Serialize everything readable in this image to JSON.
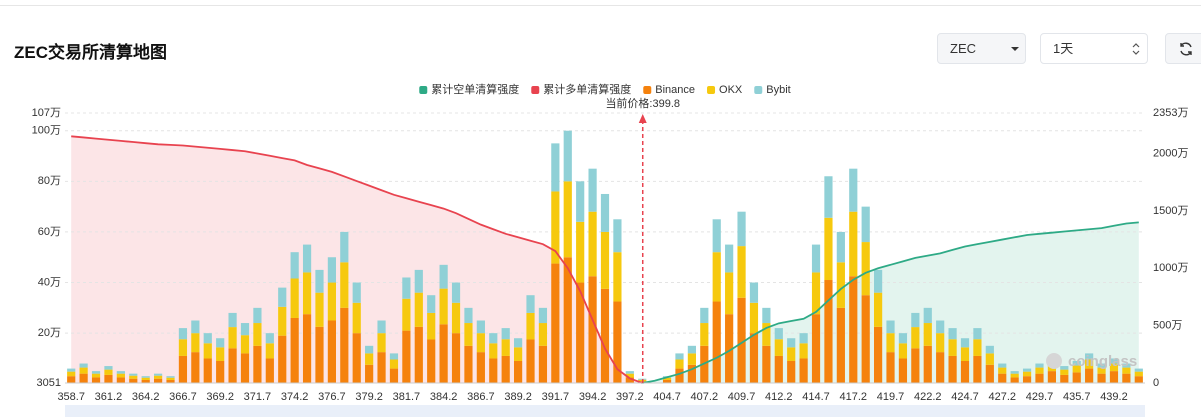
{
  "header": {
    "title": "ZEC交易所清算地图"
  },
  "controls": {
    "coin": "ZEC",
    "period": "1天"
  },
  "watermark": "coinglass",
  "chart_data": {
    "type": "bar",
    "categories": [
      "358.7",
      null,
      null,
      "361.2",
      null,
      null,
      "364.2",
      null,
      null,
      "366.7",
      null,
      null,
      "369.2",
      null,
      null,
      "371.7",
      null,
      null,
      "374.2",
      null,
      null,
      "376.7",
      null,
      null,
      "379.2",
      null,
      null,
      "381.7",
      null,
      null,
      "384.2",
      null,
      null,
      "386.7",
      null,
      null,
      "389.2",
      null,
      null,
      "391.7",
      null,
      null,
      "394.2",
      null,
      null,
      "397.2",
      null,
      null,
      "404.7",
      null,
      null,
      "407.2",
      null,
      null,
      "409.7",
      null,
      null,
      "412.2",
      null,
      null,
      "414.7",
      null,
      null,
      "417.2",
      null,
      null,
      "419.7",
      null,
      null,
      "422.2",
      null,
      null,
      "424.7",
      null,
      null,
      "427.2",
      null,
      null,
      "429.7",
      null,
      null,
      "435.7",
      null,
      null,
      "439.2",
      null,
      null
    ],
    "series": [
      {
        "name": "累计空单清算强度",
        "color": "#2eaa86",
        "type": "line",
        "axis": "y2",
        "fill": "#e3f4ee",
        "values": [
          null,
          null,
          null,
          null,
          null,
          null,
          null,
          null,
          null,
          null,
          null,
          null,
          null,
          null,
          null,
          null,
          null,
          null,
          null,
          null,
          null,
          null,
          null,
          null,
          null,
          null,
          null,
          null,
          null,
          null,
          null,
          null,
          null,
          null,
          null,
          null,
          null,
          null,
          null,
          null,
          null,
          null,
          null,
          null,
          null,
          null,
          0,
          200000,
          500000,
          800000,
          1200000,
          1700000,
          2200000,
          2800000,
          3500000,
          4200000,
          4800000,
          5200000,
          5400000,
          5600000,
          6200000,
          7200000,
          8200000,
          9000000,
          9600000,
          10000000,
          10300000,
          10600000,
          10900000,
          11100000,
          11300000,
          11600000,
          11900000,
          12100000,
          12300000,
          12500000,
          12700000,
          12900000,
          13000000,
          13100000,
          13200000,
          13300000,
          13400000,
          13500000,
          13700000,
          13900000,
          14000000
        ]
      },
      {
        "name": "累计多单清算强度",
        "color": "#e8434f",
        "type": "line",
        "axis": "y2",
        "fill": "#fce5e7",
        "values": [
          21500000,
          21400000,
          21300000,
          21200000,
          21100000,
          21000000,
          20900000,
          20800000,
          20750000,
          20700000,
          20600000,
          20500000,
          20400000,
          20300000,
          20200000,
          20000000,
          19800000,
          19600000,
          19400000,
          19000000,
          18700000,
          18400000,
          18000000,
          17600000,
          17200000,
          16800000,
          16400000,
          16100000,
          15800000,
          15500000,
          15200000,
          14800000,
          14300000,
          13800000,
          13400000,
          13000000,
          12700000,
          12400000,
          12100000,
          11500000,
          10000000,
          8000000,
          5500000,
          3000000,
          1200000,
          400000,
          0,
          null,
          null,
          null,
          null,
          null,
          null,
          null,
          null,
          null,
          null,
          null,
          null,
          null,
          null,
          null,
          null,
          null,
          null,
          null,
          null,
          null,
          null,
          null,
          null,
          null,
          null,
          null,
          null,
          null,
          null,
          null,
          null,
          null,
          null,
          null,
          null,
          null,
          null,
          null,
          null
        ]
      },
      {
        "name": "Binance",
        "color": "#f5820d",
        "values": [
          30000,
          40000,
          25000,
          35000,
          25000,
          20000,
          15000,
          20000,
          15000,
          110000,
          125000,
          100000,
          90000,
          140000,
          120000,
          150000,
          100000,
          190000,
          260000,
          275000,
          225000,
          250000,
          300000,
          200000,
          75000,
          125000,
          60000,
          210000,
          225000,
          175000,
          235000,
          200000,
          150000,
          125000,
          100000,
          110000,
          90000,
          175000,
          150000,
          475000,
          500000,
          400000,
          425000,
          375000,
          325000,
          25000,
          10000,
          0,
          15000,
          60000,
          75000,
          150000,
          325000,
          275000,
          340000,
          200000,
          150000,
          110000,
          90000,
          100000,
          275000,
          410000,
          300000,
          425000,
          350000,
          225000,
          125000,
          100000,
          140000,
          150000,
          125000,
          110000,
          90000,
          110000,
          75000,
          40000,
          25000,
          30000,
          40000,
          50000,
          35000,
          45000,
          60000,
          40000,
          50000,
          40000,
          30000
        ]
      },
      {
        "name": "OKX",
        "color": "#f6c90e",
        "values": [
          18000,
          24000,
          15000,
          21000,
          15000,
          12000,
          9000,
          12000,
          9000,
          66000,
          75000,
          60000,
          54000,
          84000,
          72000,
          90000,
          60000,
          114000,
          156000,
          165000,
          135000,
          150000,
          180000,
          120000,
          45000,
          75000,
          36000,
          126000,
          135000,
          105000,
          141000,
          120000,
          90000,
          75000,
          60000,
          66000,
          54000,
          105000,
          90000,
          285000,
          300000,
          240000,
          255000,
          225000,
          195000,
          15000,
          6000,
          0,
          9000,
          36000,
          45000,
          90000,
          195000,
          165000,
          204000,
          120000,
          90000,
          66000,
          54000,
          60000,
          165000,
          246000,
          180000,
          255000,
          210000,
          135000,
          75000,
          60000,
          84000,
          90000,
          75000,
          66000,
          54000,
          66000,
          45000,
          24000,
          15000,
          18000,
          24000,
          30000,
          21000,
          27000,
          36000,
          24000,
          30000,
          24000,
          18000
        ]
      },
      {
        "name": "Bybit",
        "color": "#8fd0d6",
        "values": [
          12000,
          16000,
          10000,
          14000,
          10000,
          8000,
          6000,
          8000,
          6000,
          44000,
          50000,
          40000,
          36000,
          56000,
          48000,
          60000,
          40000,
          76000,
          104000,
          110000,
          90000,
          100000,
          120000,
          80000,
          30000,
          50000,
          24000,
          84000,
          90000,
          70000,
          94000,
          80000,
          60000,
          50000,
          40000,
          44000,
          36000,
          70000,
          60000,
          190000,
          200000,
          160000,
          170000,
          150000,
          130000,
          10000,
          4000,
          0,
          6000,
          24000,
          30000,
          60000,
          130000,
          110000,
          136000,
          80000,
          60000,
          44000,
          36000,
          40000,
          110000,
          164000,
          120000,
          170000,
          140000,
          90000,
          50000,
          40000,
          56000,
          60000,
          50000,
          44000,
          36000,
          44000,
          30000,
          16000,
          10000,
          12000,
          16000,
          20000,
          14000,
          18000,
          24000,
          16000,
          20000,
          16000,
          12000
        ]
      }
    ],
    "ylim": [
      3051,
      1070000
    ],
    "yticks": [
      3051,
      {
        "value": 200000,
        "label": "20万"
      },
      {
        "value": 400000,
        "label": "40万"
      },
      {
        "value": 600000,
        "label": "60万"
      },
      {
        "value": 800000,
        "label": "80万"
      },
      {
        "value": 1000000,
        "label": "100万"
      },
      {
        "value": 1070000,
        "label": "107万"
      }
    ],
    "y2lim": [
      0,
      23530000
    ],
    "y2ticks": [
      0,
      {
        "value": 5000000,
        "label": "500万"
      },
      {
        "value": 10000000,
        "label": "1000万"
      },
      {
        "value": 15000000,
        "label": "1500万"
      },
      {
        "value": 20000000,
        "label": "2000万"
      },
      {
        "value": 23530000,
        "label": "2353万"
      }
    ],
    "grid": true,
    "legend": "top",
    "current_price": {
      "label": "当前价格:399.8",
      "value": 399.8,
      "color": "#e8434f"
    }
  }
}
